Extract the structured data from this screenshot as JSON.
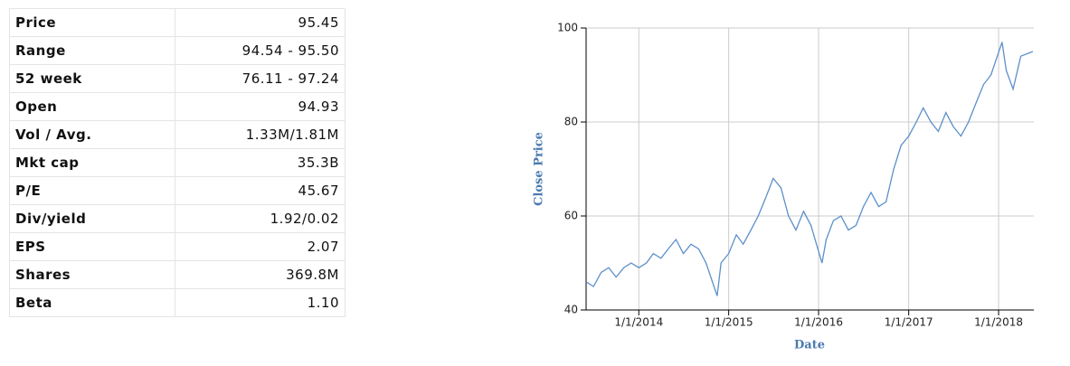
{
  "table": {
    "rows": [
      [
        "Price",
        "95.45"
      ],
      [
        "Range",
        "94.54 - 95.50"
      ],
      [
        "52 week",
        "76.11 - 97.24"
      ],
      [
        "Open",
        "94.93"
      ],
      [
        "Vol / Avg.",
        "1.33M/1.81M"
      ],
      [
        "Mkt cap",
        "35.3B"
      ],
      [
        "P/E",
        "45.67"
      ],
      [
        "Div/yield",
        "1.92/0.02"
      ],
      [
        "EPS",
        "2.07"
      ],
      [
        "Shares",
        "369.8M"
      ],
      [
        "Beta",
        "1.10"
      ]
    ]
  },
  "chart_data": {
    "type": "line",
    "x_label": "Date",
    "y_label": "Close Price",
    "x": [
      "2013-06-01",
      "2013-07-01",
      "2013-08-01",
      "2013-09-01",
      "2013-10-01",
      "2013-11-01",
      "2013-12-01",
      "2014-01-01",
      "2014-02-01",
      "2014-03-01",
      "2014-04-01",
      "2014-05-01",
      "2014-06-01",
      "2014-07-01",
      "2014-08-01",
      "2014-09-01",
      "2014-10-01",
      "2014-11-15",
      "2014-12-01",
      "2015-01-01",
      "2015-02-01",
      "2015-03-01",
      "2015-04-01",
      "2015-05-01",
      "2015-06-01",
      "2015-07-01",
      "2015-08-01",
      "2015-09-01",
      "2015-10-01",
      "2015-11-01",
      "2015-12-01",
      "2016-01-15",
      "2016-02-01",
      "2016-03-01",
      "2016-04-01",
      "2016-05-01",
      "2016-06-01",
      "2016-07-01",
      "2016-08-01",
      "2016-09-01",
      "2016-10-01",
      "2016-11-01",
      "2016-12-01",
      "2017-01-01",
      "2017-02-01",
      "2017-03-01",
      "2017-04-01",
      "2017-05-01",
      "2017-06-01",
      "2017-07-01",
      "2017-08-01",
      "2017-09-01",
      "2017-10-01",
      "2017-11-01",
      "2017-12-01",
      "2018-01-15",
      "2018-02-01",
      "2018-03-01",
      "2018-04-01",
      "2018-05-20"
    ],
    "series": [
      {
        "name": "Close Price",
        "color": "#5b8fc9",
        "values": [
          46,
          45,
          48,
          49,
          47,
          49,
          50,
          49,
          50,
          52,
          51,
          53,
          55,
          52,
          54,
          53,
          50,
          43,
          50,
          52,
          56,
          54,
          57,
          60,
          64,
          68,
          66,
          60,
          57,
          61,
          58,
          50,
          55,
          59,
          60,
          57,
          58,
          62,
          65,
          62,
          63,
          70,
          75,
          77,
          80,
          83,
          80,
          78,
          82,
          79,
          77,
          80,
          84,
          88,
          90,
          97,
          91,
          87,
          94,
          95
        ]
      }
    ],
    "xlim": [
      "2013-06-01",
      "2018-05-24"
    ],
    "xticks": [
      {
        "value": "2014-01-01",
        "label": "1/1/2014"
      },
      {
        "value": "2015-01-01",
        "label": "1/1/2015"
      },
      {
        "value": "2016-01-01",
        "label": "1/1/2016"
      },
      {
        "value": "2017-01-01",
        "label": "1/1/2017"
      },
      {
        "value": "2018-01-01",
        "label": "1/1/2018"
      }
    ],
    "ylim": [
      40,
      100
    ],
    "yticks": [
      40,
      60,
      80,
      100
    ],
    "grid": true
  }
}
